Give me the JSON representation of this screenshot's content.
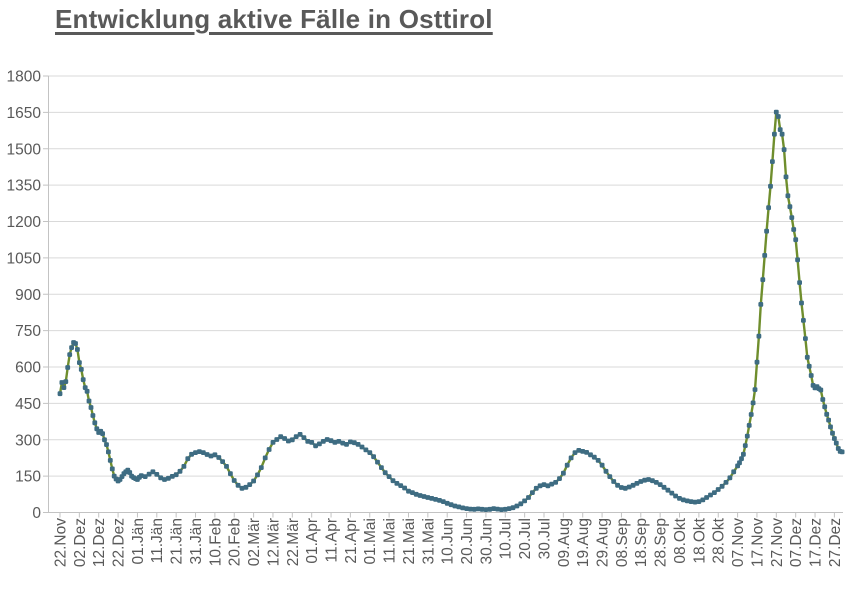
{
  "chart_data": {
    "type": "line",
    "title": "Entwicklung aktive Fälle in Osttirol",
    "legend": "none",
    "grid": "horizontal",
    "y_axis": {
      "min": 0,
      "max": 1800,
      "tick_interval": 150,
      "tick_labels": [
        "0",
        "150",
        "300",
        "450",
        "600",
        "750",
        "900",
        "1050",
        "1200",
        "1350",
        "1500",
        "1650",
        "1800"
      ]
    },
    "x_axis": {
      "tick_interval_days": 10,
      "tick_labels": [
        "22.Nov",
        "02.Dez",
        "12.Dez",
        "22.Dez",
        "01.Jän",
        "11.Jän",
        "21.Jän",
        "31.Jän",
        "10.Feb",
        "20.Feb",
        "02.Mär",
        "12.Mär",
        "22.Mär",
        "01.Apr",
        "11.Apr",
        "21.Apr",
        "01.Mai",
        "11.Mai",
        "21.Mai",
        "31.Mai",
        "10.Jun",
        "20.Jun",
        "30.Jun",
        "10.Jul",
        "20.Jul",
        "30.Jul",
        "09.Aug",
        "19.Aug",
        "29.Aug",
        "08.Sep",
        "18.Sep",
        "28.Sep",
        "08.Okt",
        "18.Okt",
        "28.Okt",
        "07.Nov",
        "17.Nov",
        "27.Nov",
        "07.Dez",
        "17.Dez",
        "27.Dez"
      ]
    },
    "colors": {
      "line": "#6f8e2d",
      "marker": "#3e6c82",
      "title_text": "#595959",
      "axis_text": "#595959",
      "gridline": "#d9d9d9",
      "axis_line": "#c3c3c3"
    },
    "series": [
      {
        "marker": "square",
        "points_day_value": [
          [
            0,
            490
          ],
          [
            1,
            536
          ],
          [
            2,
            515
          ],
          [
            3,
            540
          ],
          [
            4,
            598
          ],
          [
            5,
            651
          ],
          [
            6,
            680
          ],
          [
            7,
            701
          ],
          [
            8,
            697
          ],
          [
            9,
            672
          ],
          [
            10,
            618
          ],
          [
            11,
            590
          ],
          [
            12,
            548
          ],
          [
            13,
            515
          ],
          [
            14,
            500
          ],
          [
            15,
            460
          ],
          [
            16,
            433
          ],
          [
            17,
            400
          ],
          [
            18,
            370
          ],
          [
            19,
            345
          ],
          [
            20,
            330
          ],
          [
            21,
            335
          ],
          [
            22,
            325
          ],
          [
            23,
            300
          ],
          [
            24,
            280
          ],
          [
            25,
            250
          ],
          [
            26,
            215
          ],
          [
            27,
            180
          ],
          [
            28,
            150
          ],
          [
            29,
            138
          ],
          [
            30,
            130
          ],
          [
            31,
            136
          ],
          [
            32,
            148
          ],
          [
            33,
            160
          ],
          [
            34,
            168
          ],
          [
            35,
            175
          ],
          [
            36,
            165
          ],
          [
            37,
            150
          ],
          [
            38,
            144
          ],
          [
            39,
            140
          ],
          [
            40,
            136
          ],
          [
            41,
            145
          ],
          [
            42,
            152
          ],
          [
            44,
            148
          ],
          [
            46,
            158
          ],
          [
            48,
            168
          ],
          [
            50,
            157
          ],
          [
            52,
            143
          ],
          [
            54,
            136
          ],
          [
            56,
            141
          ],
          [
            58,
            149
          ],
          [
            60,
            156
          ],
          [
            62,
            170
          ],
          [
            64,
            190
          ],
          [
            66,
            222
          ],
          [
            68,
            240
          ],
          [
            70,
            247
          ],
          [
            72,
            251
          ],
          [
            74,
            247
          ],
          [
            76,
            239
          ],
          [
            78,
            233
          ],
          [
            80,
            238
          ],
          [
            82,
            227
          ],
          [
            84,
            210
          ],
          [
            86,
            190
          ],
          [
            88,
            160
          ],
          [
            90,
            132
          ],
          [
            92,
            112
          ],
          [
            94,
            100
          ],
          [
            96,
            104
          ],
          [
            98,
            115
          ],
          [
            100,
            130
          ],
          [
            102,
            155
          ],
          [
            104,
            185
          ],
          [
            106,
            225
          ],
          [
            108,
            260
          ],
          [
            110,
            289
          ],
          [
            112,
            301
          ],
          [
            114,
            313
          ],
          [
            116,
            305
          ],
          [
            118,
            295
          ],
          [
            120,
            300
          ],
          [
            122,
            313
          ],
          [
            124,
            322
          ],
          [
            126,
            309
          ],
          [
            128,
            293
          ],
          [
            130,
            289
          ],
          [
            132,
            275
          ],
          [
            134,
            283
          ],
          [
            136,
            293
          ],
          [
            138,
            301
          ],
          [
            140,
            296
          ],
          [
            142,
            289
          ],
          [
            144,
            293
          ],
          [
            146,
            286
          ],
          [
            148,
            281
          ],
          [
            150,
            291
          ],
          [
            152,
            288
          ],
          [
            154,
            281
          ],
          [
            156,
            270
          ],
          [
            158,
            258
          ],
          [
            160,
            247
          ],
          [
            162,
            230
          ],
          [
            164,
            208
          ],
          [
            166,
            185
          ],
          [
            168,
            164
          ],
          [
            170,
            148
          ],
          [
            172,
            131
          ],
          [
            174,
            120
          ],
          [
            176,
            111
          ],
          [
            178,
            101
          ],
          [
            180,
            88
          ],
          [
            182,
            82
          ],
          [
            184,
            75
          ],
          [
            186,
            70
          ],
          [
            188,
            66
          ],
          [
            190,
            62
          ],
          [
            192,
            58
          ],
          [
            194,
            54
          ],
          [
            196,
            50
          ],
          [
            198,
            45
          ],
          [
            200,
            38
          ],
          [
            202,
            32
          ],
          [
            204,
            27
          ],
          [
            206,
            23
          ],
          [
            208,
            19
          ],
          [
            210,
            16
          ],
          [
            212,
            14
          ],
          [
            214,
            13
          ],
          [
            216,
            15
          ],
          [
            218,
            13
          ],
          [
            220,
            12
          ],
          [
            222,
            13
          ],
          [
            224,
            16
          ],
          [
            226,
            14
          ],
          [
            228,
            12
          ],
          [
            230,
            13
          ],
          [
            232,
            16
          ],
          [
            234,
            20
          ],
          [
            236,
            27
          ],
          [
            238,
            36
          ],
          [
            240,
            48
          ],
          [
            242,
            62
          ],
          [
            244,
            82
          ],
          [
            246,
            100
          ],
          [
            248,
            110
          ],
          [
            250,
            115
          ],
          [
            252,
            110
          ],
          [
            254,
            117
          ],
          [
            256,
            124
          ],
          [
            258,
            140
          ],
          [
            260,
            162
          ],
          [
            262,
            195
          ],
          [
            264,
            225
          ],
          [
            266,
            247
          ],
          [
            268,
            256
          ],
          [
            270,
            252
          ],
          [
            272,
            248
          ],
          [
            274,
            238
          ],
          [
            276,
            228
          ],
          [
            278,
            215
          ],
          [
            280,
            195
          ],
          [
            282,
            170
          ],
          [
            284,
            148
          ],
          [
            286,
            128
          ],
          [
            288,
            112
          ],
          [
            290,
            103
          ],
          [
            292,
            100
          ],
          [
            294,
            105
          ],
          [
            296,
            112
          ],
          [
            298,
            120
          ],
          [
            300,
            128
          ],
          [
            302,
            133
          ],
          [
            304,
            136
          ],
          [
            306,
            131
          ],
          [
            308,
            124
          ],
          [
            310,
            115
          ],
          [
            312,
            104
          ],
          [
            314,
            92
          ],
          [
            316,
            80
          ],
          [
            318,
            68
          ],
          [
            320,
            58
          ],
          [
            322,
            52
          ],
          [
            324,
            48
          ],
          [
            326,
            45
          ],
          [
            328,
            43
          ],
          [
            330,
            45
          ],
          [
            332,
            52
          ],
          [
            334,
            62
          ],
          [
            336,
            72
          ],
          [
            338,
            82
          ],
          [
            340,
            95
          ],
          [
            342,
            108
          ],
          [
            344,
            124
          ],
          [
            346,
            143
          ],
          [
            348,
            168
          ],
          [
            350,
            192
          ],
          [
            351,
            205
          ],
          [
            352,
            222
          ],
          [
            353,
            240
          ],
          [
            354,
            276
          ],
          [
            355,
            315
          ],
          [
            356,
            359
          ],
          [
            357,
            404
          ],
          [
            358,
            452
          ],
          [
            359,
            507
          ],
          [
            360,
            620
          ],
          [
            361,
            727
          ],
          [
            362,
            858
          ],
          [
            363,
            960
          ],
          [
            364,
            1060
          ],
          [
            365,
            1160
          ],
          [
            366,
            1257
          ],
          [
            367,
            1345
          ],
          [
            368,
            1447
          ],
          [
            369,
            1560
          ],
          [
            370,
            1651
          ],
          [
            371,
            1633
          ],
          [
            372,
            1579
          ],
          [
            373,
            1560
          ],
          [
            374,
            1496
          ],
          [
            375,
            1384
          ],
          [
            376,
            1306
          ],
          [
            377,
            1261
          ],
          [
            378,
            1216
          ],
          [
            379,
            1167
          ],
          [
            380,
            1125
          ],
          [
            381,
            1042
          ],
          [
            382,
            948
          ],
          [
            383,
            864
          ],
          [
            384,
            792
          ],
          [
            385,
            717
          ],
          [
            386,
            640
          ],
          [
            387,
            603
          ],
          [
            388,
            565
          ],
          [
            389,
            524
          ],
          [
            390,
            514
          ],
          [
            391,
            519
          ],
          [
            392,
            511
          ],
          [
            393,
            505
          ],
          [
            394,
            466
          ],
          [
            395,
            436
          ],
          [
            396,
            405
          ],
          [
            397,
            381
          ],
          [
            398,
            353
          ],
          [
            399,
            327
          ],
          [
            400,
            305
          ],
          [
            401,
            286
          ],
          [
            402,
            264
          ],
          [
            403,
            252
          ],
          [
            404,
            250
          ]
        ]
      }
    ]
  }
}
